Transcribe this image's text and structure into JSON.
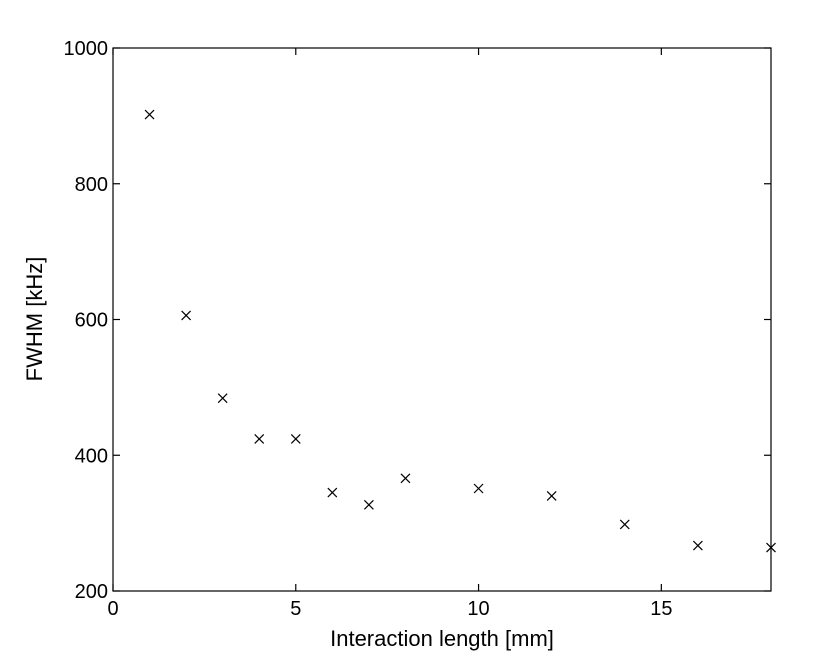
{
  "chart_data": {
    "type": "scatter",
    "title": "",
    "xlabel": "Interaction length [mm]",
    "ylabel": "FWHM [kHz]",
    "xlim": [
      0,
      18
    ],
    "ylim": [
      200,
      1000
    ],
    "xticks": [
      0,
      5,
      10,
      15
    ],
    "yticks": [
      200,
      400,
      600,
      800,
      1000
    ],
    "grid": false,
    "marker": "x",
    "color": "#000000",
    "x": [
      1,
      2,
      3,
      4,
      5,
      6,
      7,
      8,
      10,
      12,
      14,
      16,
      18
    ],
    "y": [
      902,
      606,
      484,
      424,
      424,
      345,
      327,
      366,
      351,
      340,
      298,
      267,
      264
    ]
  }
}
